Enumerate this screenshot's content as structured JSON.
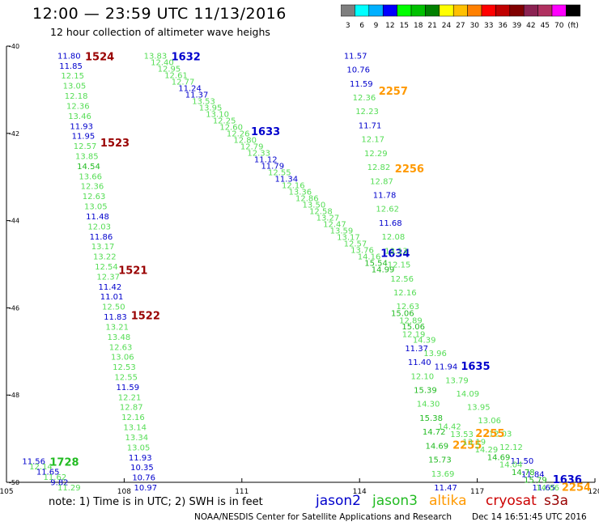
{
  "header": {
    "title": "12:00 — 23:59 UTC 11/13/2016",
    "subtitle": "12 hour collection of altimeter wave heighs"
  },
  "colorbar": {
    "labels": [
      "3",
      "6",
      "9",
      "12",
      "15",
      "18",
      "21",
      "24",
      "27",
      "30",
      "33",
      "36",
      "39",
      "42",
      "45",
      "70",
      "(ft)"
    ],
    "colors": [
      "#7f7f7f",
      "#00ffff",
      "#00b0ff",
      "#0000ff",
      "#00ff00",
      "#00c000",
      "#008000",
      "#ffff00",
      "#ffc000",
      "#ff8000",
      "#ff0000",
      "#c00000",
      "#800000",
      "#8b2252",
      "#b03060",
      "#ff00ff",
      "#000000"
    ]
  },
  "colors": {
    "jason2": "#0000cc",
    "jason3": "#22bb22",
    "altika": "#ff9900",
    "cryosat": "#cc0000",
    "s3a": "#990000",
    "light_green": "#55dd55"
  },
  "chart_data": {
    "type": "scatter",
    "title": "12:00 — 23:59 UTC 11/13/2016",
    "xlim": [
      105,
      120
    ],
    "ylim": [
      -50,
      -40
    ],
    "x_ticks": [
      "105",
      "108",
      "111",
      "114",
      "117",
      "120"
    ],
    "y_ticks": [
      "-40",
      "-42",
      "-44",
      "-46",
      "-48",
      "-50"
    ],
    "grid": false,
    "tracks": [
      {
        "sat": "s3a",
        "pass": "1524",
        "x0": 106.3,
        "y0": -40.1,
        "x1": 108.25,
        "y1": -50.0,
        "times": [
          {
            "label": "1524",
            "frac": 0.0
          },
          {
            "label": "1523",
            "frac": 0.2
          },
          {
            "label": "1522",
            "frac": 0.6
          }
        ],
        "swh": [
          "11.80",
          "11.85",
          "12.15",
          "13.05",
          "12.18",
          "12.36",
          "13.46",
          "11.93",
          "11.95",
          "12.57",
          "13.85",
          "14.54",
          "13.66",
          "12.36",
          "12.63",
          "13.05",
          "11.48",
          "12.03",
          "11.86",
          "13.17",
          "13.22",
          "12.54",
          "12.37",
          "11.42",
          "11.01",
          "12.50",
          "11.83",
          "13.21",
          "13.48",
          "12.63",
          "13.06",
          "12.53",
          "12.55",
          "11.59",
          "12.21",
          "12.87",
          "12.16",
          "13.14",
          "13.34",
          "13.05",
          "11.93",
          "10.35",
          "10.76",
          "10.97"
        ]
      },
      {
        "sat": "s3a",
        "pass": "1521",
        "x0": 106.3,
        "y0": -40,
        "x1": 108.0,
        "y1": -50,
        "times": [
          {
            "label": "1521",
            "frac": 0.5
          }
        ],
        "swh": []
      },
      {
        "sat": "jason3",
        "pass": "1728",
        "x0": 105.4,
        "y0": -49.4,
        "x1": 106.3,
        "y1": -50.0,
        "times": [
          {
            "label": "1728",
            "frac": 0.0
          }
        ],
        "swh": [
          "11.56",
          "12.14",
          "11.65",
          "11.62",
          "9.82",
          "11.29"
        ]
      },
      {
        "sat": "jason2",
        "pass": "1632",
        "x0": 108.5,
        "y0": -40.1,
        "x1": 114.3,
        "y1": -45.0,
        "times": [
          {
            "label": "1632",
            "frac": 0.0
          },
          {
            "label": "1633",
            "frac": 0.35
          },
          {
            "label": "1634",
            "frac": 0.92
          }
        ],
        "swh": [
          "13.83",
          "12.40",
          "12.95",
          "12.61",
          "12.77",
          "11.24",
          "11.37",
          "13.53",
          "13.95",
          "13.10",
          "12.25",
          "12.60",
          "12.26",
          "12.80",
          "12.79",
          "12.33",
          "11.12",
          "11.79",
          "12.55",
          "11.34",
          "12.16",
          "13.36",
          "12.86",
          "13.50",
          "12.58",
          "13.27",
          "12.47",
          "13.59",
          "13.17",
          "12.57",
          "13.76",
          "14.16",
          "15.54",
          "14.99"
        ]
      },
      {
        "sat": "altika",
        "pass": "2257",
        "x0": 113.6,
        "y0": -40.1,
        "x1": 115.9,
        "y1": -50.0,
        "times": [
          {
            "label": "2257",
            "frac": 0.08
          },
          {
            "label": "2256",
            "frac": 0.26
          },
          {
            "label": "2255",
            "frac": 0.9
          }
        ],
        "swh": [
          "11.57",
          "10.76",
          "11.59",
          "12.36",
          "12.23",
          "11.71",
          "12.17",
          "12.29",
          "12.82",
          "12.87",
          "11.78",
          "12.62",
          "11.68",
          "12.08",
          "13.13",
          "12.15",
          "12.56",
          "12.16",
          "12.63",
          "12.89",
          "12.19",
          "11.37",
          "11.40",
          "12.10",
          "15.39",
          "14.30",
          "15.38",
          "14.72",
          "14.69",
          "15.73",
          "13.69",
          "11.47"
        ]
      },
      {
        "sat": "jason2",
        "pass": "1635",
        "x0": 114.8,
        "y0": -46.0,
        "x1": 118.4,
        "y1": -50.0,
        "times": [
          {
            "label": "1635",
            "frac": 0.3
          },
          {
            "label": "1636",
            "frac": 0.95
          }
        ],
        "swh": [
          "15.06",
          "15.06",
          "14.39",
          "13.96",
          "11.94",
          "13.79",
          "14.09",
          "13.95",
          "13.06",
          "12.03",
          "12.12",
          "11.50",
          "11.84",
          "11.65"
        ]
      },
      {
        "sat": "altika",
        "pass": "2254",
        "x0": 116.0,
        "y0": -48.6,
        "x1": 118.5,
        "y1": -50.0,
        "times": [
          {
            "label": "2255",
            "frac": 0.1
          },
          {
            "label": "2254",
            "frac": 0.98
          }
        ],
        "swh": [
          "14.42",
          "13.53",
          "13.19",
          "14.29",
          "14.69",
          "14.04",
          "14.78",
          "15.79",
          "14.06"
        ]
      }
    ]
  },
  "legend": {
    "note": "note:  1) Time is in UTC;  2) SWH is in feet",
    "satellites": [
      "jason2",
      "jason3",
      "altika",
      "cryosat",
      "s3a"
    ]
  },
  "credit": {
    "left": "NOAA/NESDIS Center for Satellite Applications and Research",
    "right": "Dec 14 16:51:45 UTC 2016"
  }
}
